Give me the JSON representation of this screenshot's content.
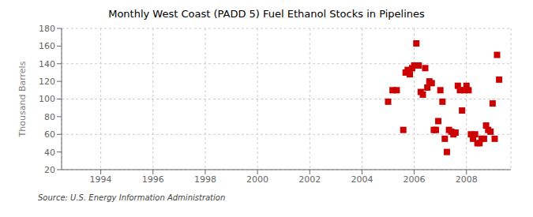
{
  "chart_data": {
    "type": "scatter",
    "title": "Monthly West Coast (PADD 5) Fuel Ethanol Stocks in Pipelines",
    "ylabel": "Thousand Barrels",
    "annotations": [
      "Source: U.S. Energy Information Administration"
    ],
    "color": "#cc0000",
    "marker": "square",
    "grid": true,
    "xlim": [
      1992.5,
      2009.7
    ],
    "ylim": [
      20,
      180
    ],
    "xticks": [
      1994,
      1996,
      1998,
      2000,
      2002,
      2004,
      2006,
      2008
    ],
    "yticks": [
      20,
      40,
      60,
      80,
      100,
      120,
      140,
      160,
      180
    ],
    "x": [
      2005.0,
      2005.17,
      2005.33,
      2005.58,
      2005.67,
      2005.75,
      2005.83,
      2005.92,
      2006.0,
      2006.08,
      2006.17,
      2006.25,
      2006.33,
      2006.42,
      2006.5,
      2006.58,
      2006.67,
      2006.75,
      2006.83,
      2006.92,
      2007.0,
      2007.08,
      2007.17,
      2007.25,
      2007.33,
      2007.42,
      2007.5,
      2007.58,
      2007.67,
      2007.75,
      2007.83,
      2007.92,
      2008.0,
      2008.08,
      2008.17,
      2008.25,
      2008.33,
      2008.42,
      2008.5,
      2008.58,
      2008.67,
      2008.75,
      2008.83,
      2008.92,
      2009.0,
      2009.08,
      2009.17,
      2009.25
    ],
    "values": [
      97,
      110,
      110,
      65,
      130,
      133,
      128,
      135,
      138,
      163,
      138,
      108,
      105,
      135,
      113,
      120,
      118,
      65,
      65,
      75,
      110,
      97,
      55,
      40,
      65,
      63,
      60,
      62,
      115,
      110,
      87,
      110,
      115,
      110,
      60,
      55,
      60,
      50,
      50,
      55,
      55,
      70,
      65,
      63,
      95,
      55,
      150,
      122
    ]
  }
}
